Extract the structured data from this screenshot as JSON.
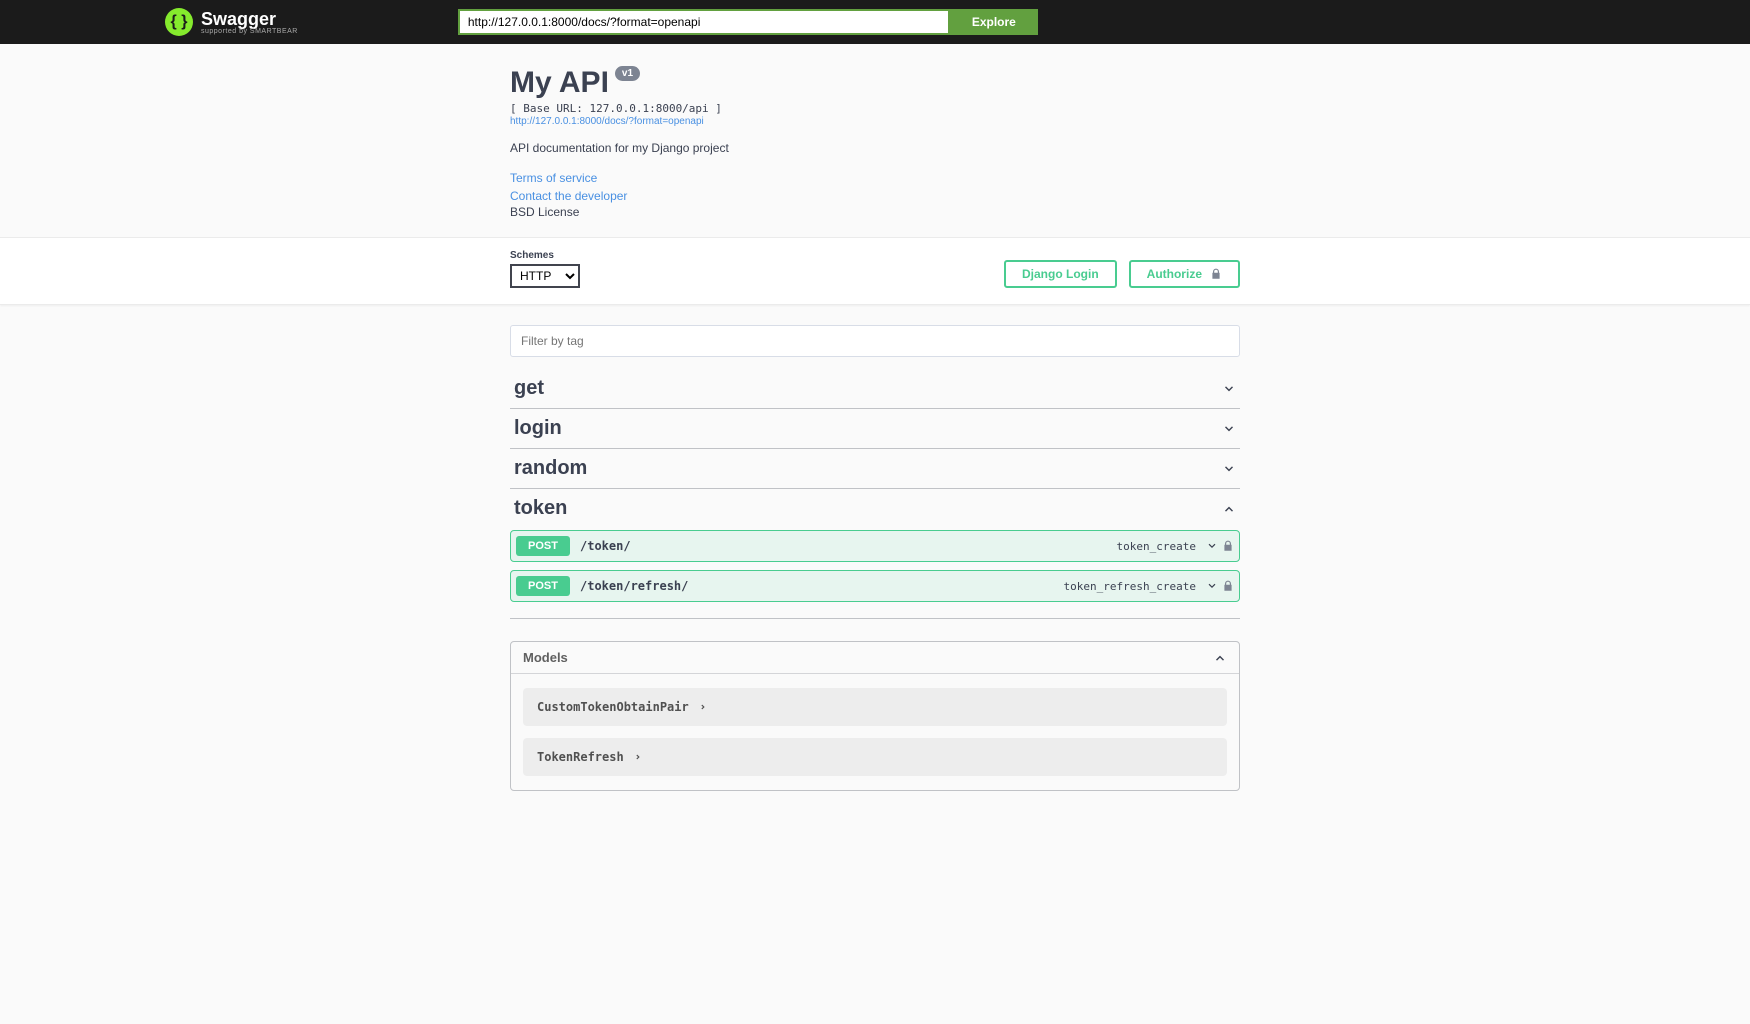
{
  "topbar": {
    "logo_text": "Swagger",
    "logo_sub": "supported by SMARTBEAR",
    "url_value": "http://127.0.0.1:8000/docs/?format=openapi",
    "explore_label": "Explore"
  },
  "info": {
    "title": "My API",
    "version": "v1",
    "base_url": "[ Base URL: 127.0.0.1:8000/api ]",
    "spec_link": "http://127.0.0.1:8000/docs/?format=openapi",
    "description": "API documentation for my Django project",
    "tos_label": "Terms of service",
    "contact_label": "Contact the developer",
    "license": "BSD License"
  },
  "schemes": {
    "label": "Schemes",
    "selected": "HTTP",
    "django_login": "Django Login",
    "authorize": "Authorize"
  },
  "filter_placeholder": "Filter by tag",
  "tags": [
    {
      "name": "get",
      "expanded": false
    },
    {
      "name": "login",
      "expanded": false
    },
    {
      "name": "random",
      "expanded": false
    },
    {
      "name": "token",
      "expanded": true
    }
  ],
  "token_ops": [
    {
      "method": "POST",
      "path": "/token/",
      "op_id": "token_create"
    },
    {
      "method": "POST",
      "path": "/token/refresh/",
      "op_id": "token_refresh_create"
    }
  ],
  "models": {
    "title": "Models",
    "items": [
      {
        "name": "CustomTokenObtainPair"
      },
      {
        "name": "TokenRefresh"
      }
    ]
  },
  "colors": {
    "post": "#49cc90",
    "accent": "#62a03f"
  }
}
